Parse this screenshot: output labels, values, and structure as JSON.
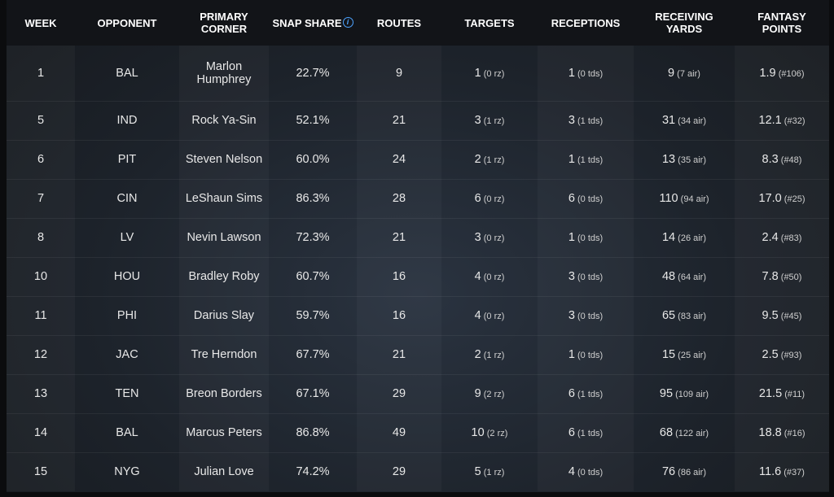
{
  "headers": {
    "week": "WEEK",
    "opponent": "OPPONENT",
    "primary_corner": "PRIMARY CORNER",
    "snap_share": "SNAP SHARE",
    "routes": "ROUTES",
    "targets": "TARGETS",
    "receptions": "RECEPTIONS",
    "receiving_yards": "RECEIVING YARDS",
    "fantasy_points": "FANTASY POINTS"
  },
  "info_icon": "info-icon",
  "rows": [
    {
      "week": "1",
      "opponent": "BAL",
      "corner": "Marlon Humphrey",
      "snap": "22.7%",
      "routes": "9",
      "targets": "1",
      "targets_sub": "0 rz",
      "receptions": "1",
      "receptions_sub": "0 tds",
      "yards": "9",
      "yards_sub": "7 air",
      "fp": "1.9",
      "fp_sub": "#106"
    },
    {
      "week": "5",
      "opponent": "IND",
      "corner": "Rock Ya-Sin",
      "snap": "52.1%",
      "routes": "21",
      "targets": "3",
      "targets_sub": "1 rz",
      "receptions": "3",
      "receptions_sub": "1 tds",
      "yards": "31",
      "yards_sub": "34 air",
      "fp": "12.1",
      "fp_sub": "#32"
    },
    {
      "week": "6",
      "opponent": "PIT",
      "corner": "Steven Nelson",
      "snap": "60.0%",
      "routes": "24",
      "targets": "2",
      "targets_sub": "1 rz",
      "receptions": "1",
      "receptions_sub": "1 tds",
      "yards": "13",
      "yards_sub": "35 air",
      "fp": "8.3",
      "fp_sub": "#48"
    },
    {
      "week": "7",
      "opponent": "CIN",
      "corner": "LeShaun Sims",
      "snap": "86.3%",
      "routes": "28",
      "targets": "6",
      "targets_sub": "0 rz",
      "receptions": "6",
      "receptions_sub": "0 tds",
      "yards": "110",
      "yards_sub": "94 air",
      "fp": "17.0",
      "fp_sub": "#25"
    },
    {
      "week": "8",
      "opponent": "LV",
      "corner": "Nevin Lawson",
      "snap": "72.3%",
      "routes": "21",
      "targets": "3",
      "targets_sub": "0 rz",
      "receptions": "1",
      "receptions_sub": "0 tds",
      "yards": "14",
      "yards_sub": "26 air",
      "fp": "2.4",
      "fp_sub": "#83"
    },
    {
      "week": "10",
      "opponent": "HOU",
      "corner": "Bradley Roby",
      "snap": "60.7%",
      "routes": "16",
      "targets": "4",
      "targets_sub": "0 rz",
      "receptions": "3",
      "receptions_sub": "0 tds",
      "yards": "48",
      "yards_sub": "64 air",
      "fp": "7.8",
      "fp_sub": "#50"
    },
    {
      "week": "11",
      "opponent": "PHI",
      "corner": "Darius Slay",
      "snap": "59.7%",
      "routes": "16",
      "targets": "4",
      "targets_sub": "0 rz",
      "receptions": "3",
      "receptions_sub": "0 tds",
      "yards": "65",
      "yards_sub": "83 air",
      "fp": "9.5",
      "fp_sub": "#45"
    },
    {
      "week": "12",
      "opponent": "JAC",
      "corner": "Tre Herndon",
      "snap": "67.7%",
      "routes": "21",
      "targets": "2",
      "targets_sub": "1 rz",
      "receptions": "1",
      "receptions_sub": "0 tds",
      "yards": "15",
      "yards_sub": "25 air",
      "fp": "2.5",
      "fp_sub": "#93"
    },
    {
      "week": "13",
      "opponent": "TEN",
      "corner": "Breon Borders",
      "snap": "67.1%",
      "routes": "29",
      "targets": "9",
      "targets_sub": "2 rz",
      "receptions": "6",
      "receptions_sub": "1 tds",
      "yards": "95",
      "yards_sub": "109 air",
      "fp": "21.5",
      "fp_sub": "#11"
    },
    {
      "week": "14",
      "opponent": "BAL",
      "corner": "Marcus Peters",
      "snap": "86.8%",
      "routes": "49",
      "targets": "10",
      "targets_sub": "2 rz",
      "receptions": "6",
      "receptions_sub": "1 tds",
      "yards": "68",
      "yards_sub": "122 air",
      "fp": "18.8",
      "fp_sub": "#16"
    },
    {
      "week": "15",
      "opponent": "NYG",
      "corner": "Julian Love",
      "snap": "74.2%",
      "routes": "29",
      "targets": "5",
      "targets_sub": "1 rz",
      "receptions": "4",
      "receptions_sub": "0 tds",
      "yards": "76",
      "yards_sub": "86 air",
      "fp": "11.6",
      "fp_sub": "#37"
    }
  ]
}
